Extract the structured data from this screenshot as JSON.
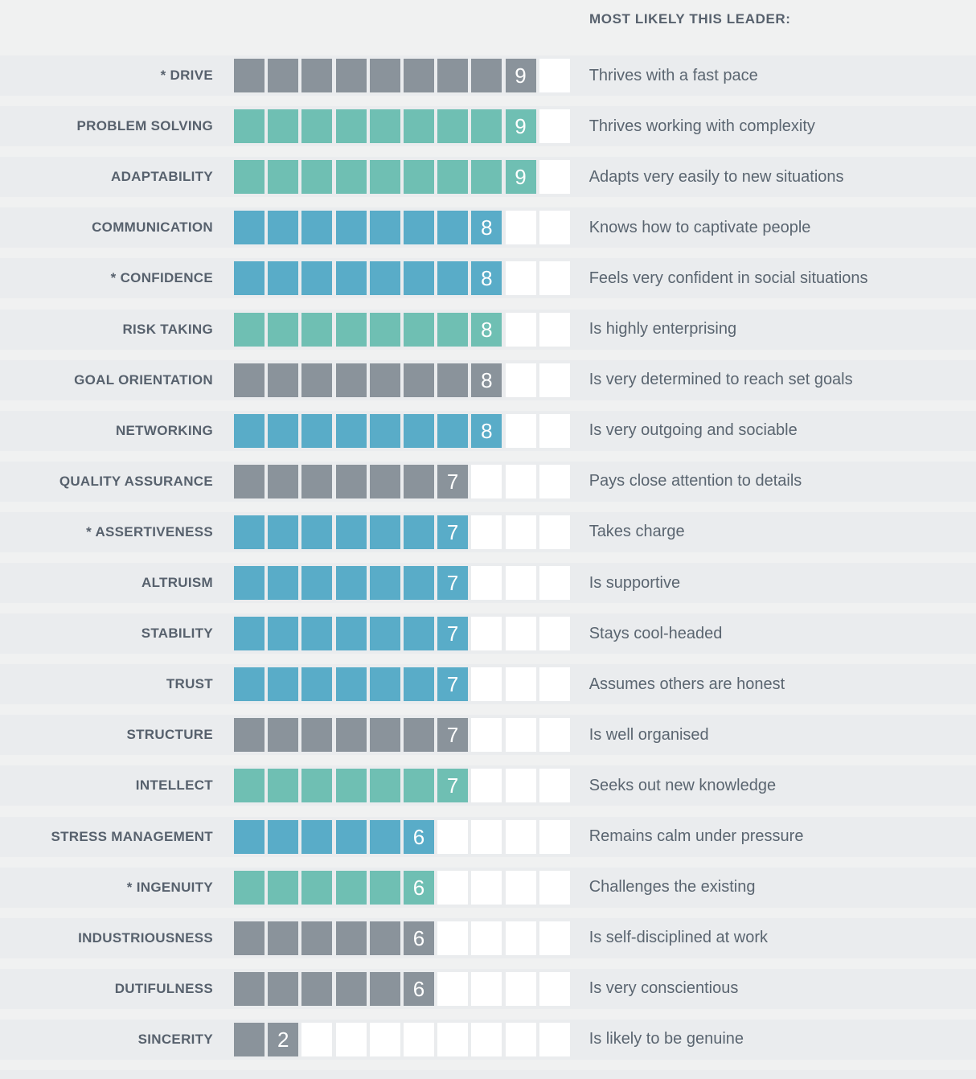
{
  "header": {
    "title": "MOST LIKELY THIS LEADER:"
  },
  "scale": {
    "min": 1,
    "max": 10
  },
  "colors": {
    "gray": "#8A939B",
    "teal": "#6FBFB3",
    "blue": "#59ACC8",
    "empty": "#FFFFFF",
    "band": "#EAECEE",
    "page": "#F0F1F1",
    "label_text": "#57616D",
    "desc_text": "#5A6570",
    "score_text": "#FFFFFF"
  },
  "rows": [
    {
      "label": "* DRIVE",
      "score": 9,
      "color": "gray",
      "description": "Thrives with a fast pace"
    },
    {
      "label": "PROBLEM SOLVING",
      "score": 9,
      "color": "teal",
      "description": "Thrives working with complexity"
    },
    {
      "label": "ADAPTABILITY",
      "score": 9,
      "color": "teal",
      "description": "Adapts very easily to new situations"
    },
    {
      "label": "COMMUNICATION",
      "score": 8,
      "color": "blue",
      "description": "Knows how to captivate people"
    },
    {
      "label": "* CONFIDENCE",
      "score": 8,
      "color": "blue",
      "description": "Feels very confident in social situations"
    },
    {
      "label": "RISK TAKING",
      "score": 8,
      "color": "teal",
      "description": "Is highly enterprising"
    },
    {
      "label": "GOAL ORIENTATION",
      "score": 8,
      "color": "gray",
      "description": "Is very determined to reach set goals"
    },
    {
      "label": "NETWORKING",
      "score": 8,
      "color": "blue",
      "description": "Is very outgoing and sociable"
    },
    {
      "label": "QUALITY ASSURANCE",
      "score": 7,
      "color": "gray",
      "description": "Pays close attention to details"
    },
    {
      "label": "* ASSERTIVENESS",
      "score": 7,
      "color": "blue",
      "description": "Takes charge"
    },
    {
      "label": "ALTRUISM",
      "score": 7,
      "color": "blue",
      "description": "Is supportive"
    },
    {
      "label": "STABILITY",
      "score": 7,
      "color": "blue",
      "description": "Stays cool-headed"
    },
    {
      "label": "TRUST",
      "score": 7,
      "color": "blue",
      "description": "Assumes others are honest"
    },
    {
      "label": "STRUCTURE",
      "score": 7,
      "color": "gray",
      "description": "Is well organised"
    },
    {
      "label": "INTELLECT",
      "score": 7,
      "color": "teal",
      "description": "Seeks out new knowledge"
    },
    {
      "label": "STRESS MANAGEMENT",
      "score": 6,
      "color": "blue",
      "description": "Remains calm under pressure"
    },
    {
      "label": "* INGENUITY",
      "score": 6,
      "color": "teal",
      "description": "Challenges the existing"
    },
    {
      "label": "INDUSTRIOUSNESS",
      "score": 6,
      "color": "gray",
      "description": "Is self-disciplined at work"
    },
    {
      "label": "DUTIFULNESS",
      "score": 6,
      "color": "gray",
      "description": "Is very conscientious"
    },
    {
      "label": "SINCERITY",
      "score": 2,
      "color": "gray",
      "description": "Is likely to be genuine"
    }
  ],
  "chart_data": {
    "type": "bar",
    "orientation": "horizontal",
    "segmented": true,
    "title": "MOST LIKELY THIS LEADER:",
    "categories": [
      "* DRIVE",
      "PROBLEM SOLVING",
      "ADAPTABILITY",
      "COMMUNICATION",
      "* CONFIDENCE",
      "RISK TAKING",
      "GOAL ORIENTATION",
      "NETWORKING",
      "QUALITY ASSURANCE",
      "* ASSERTIVENESS",
      "ALTRUISM",
      "STABILITY",
      "TRUST",
      "STRUCTURE",
      "INTELLECT",
      "STRESS MANAGEMENT",
      "* INGENUITY",
      "INDUSTRIOUSNESS",
      "DUTIFULNESS",
      "SINCERITY"
    ],
    "values": [
      9,
      9,
      9,
      8,
      8,
      8,
      8,
      8,
      7,
      7,
      7,
      7,
      7,
      7,
      7,
      6,
      6,
      6,
      6,
      2
    ],
    "bar_colors": [
      "gray",
      "teal",
      "teal",
      "blue",
      "blue",
      "teal",
      "gray",
      "blue",
      "gray",
      "blue",
      "blue",
      "blue",
      "blue",
      "gray",
      "teal",
      "blue",
      "teal",
      "gray",
      "gray",
      "gray"
    ],
    "annotations": [
      "Thrives with a fast pace",
      "Thrives working with complexity",
      "Adapts very easily to new situations",
      "Knows how to captivate people",
      "Feels very confident in social situations",
      "Is highly enterprising",
      "Is very determined to reach set goals",
      "Is very outgoing and sociable",
      "Pays close attention to details",
      "Takes charge",
      "Is supportive",
      "Stays cool-headed",
      "Assumes others are honest",
      "Is well organised",
      "Seeks out new knowledge",
      "Remains calm under pressure",
      "Challenges the existing",
      "Is self-disciplined at work",
      "Is very conscientious",
      "Is likely to be genuine"
    ],
    "xlim": [
      0,
      10
    ],
    "grid": false,
    "legend": false
  }
}
